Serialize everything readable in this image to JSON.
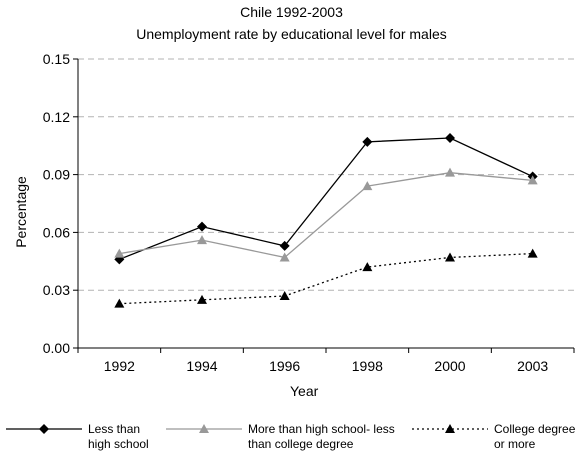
{
  "chart_data": {
    "type": "line",
    "title": "Chile 1992-2003",
    "subtitle": "Unemployment rate by educational level for males",
    "xlabel": "Year",
    "ylabel": "Percentage",
    "categories": [
      "1992",
      "1994",
      "1996",
      "1998",
      "2000",
      "2003"
    ],
    "ylim": [
      0,
      0.15
    ],
    "yticks": [
      "0.00",
      "0.03",
      "0.06",
      "0.09",
      "0.12",
      "0.15"
    ],
    "grid": true,
    "legend_position": "bottom",
    "series": [
      {
        "name": "Less than high school",
        "name_lines": [
          "Less than",
          "high school"
        ],
        "values": [
          0.046,
          0.063,
          0.053,
          0.107,
          0.109,
          0.089
        ],
        "color": "#000000",
        "marker": "diamond",
        "dash": "solid"
      },
      {
        "name": "More than high school- less than college degree",
        "name_lines": [
          "More than high school- less",
          "than college degree"
        ],
        "values": [
          0.049,
          0.056,
          0.047,
          0.084,
          0.091,
          0.087
        ],
        "color": "#999999",
        "marker": "triangle",
        "dash": "solid"
      },
      {
        "name": "College degree or more",
        "name_lines": [
          "College degree",
          "or more"
        ],
        "values": [
          0.023,
          0.025,
          0.027,
          0.042,
          0.047,
          0.049
        ],
        "color": "#000000",
        "marker": "triangle",
        "dash": "dotted"
      }
    ]
  }
}
